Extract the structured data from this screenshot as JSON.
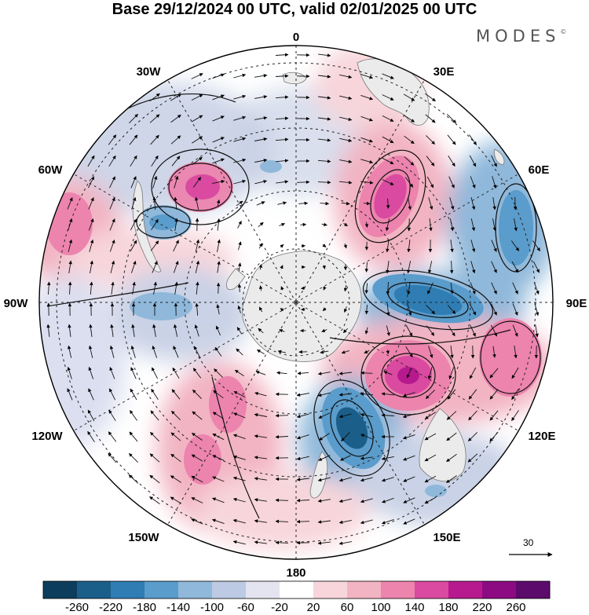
{
  "header": {
    "title": "Base 29/12/2024 00 UTC, valid 02/01/2025 00 UTC",
    "brand": "MODES",
    "brand_mark": "©"
  },
  "map": {
    "projection": "south-polar-stereographic",
    "longitude_labels": [
      "0",
      "30E",
      "60E",
      "90E",
      "120E",
      "150E",
      "180",
      "150W",
      "120W",
      "90W",
      "60W",
      "30W"
    ],
    "gridlines": "dashed",
    "continent_fill": "#eeeeee",
    "vector_reference": {
      "value": "30",
      "icon": "arrow-right-icon"
    }
  },
  "colorbar": {
    "labels": [
      "-260",
      "-220",
      "-180",
      "-140",
      "-100",
      "-60",
      "-20",
      "20",
      "60",
      "100",
      "140",
      "180",
      "220",
      "260"
    ],
    "colors": [
      "#0d3d5c",
      "#1b5e8a",
      "#2f7db3",
      "#5a9ccb",
      "#8fb8da",
      "#bccbe3",
      "#e4e4f1",
      "#ffffff",
      "#f7d5db",
      "#f2b3c2",
      "#ec84ae",
      "#d94aa0",
      "#b7198e",
      "#8c0b82",
      "#5c0a6b"
    ]
  }
}
